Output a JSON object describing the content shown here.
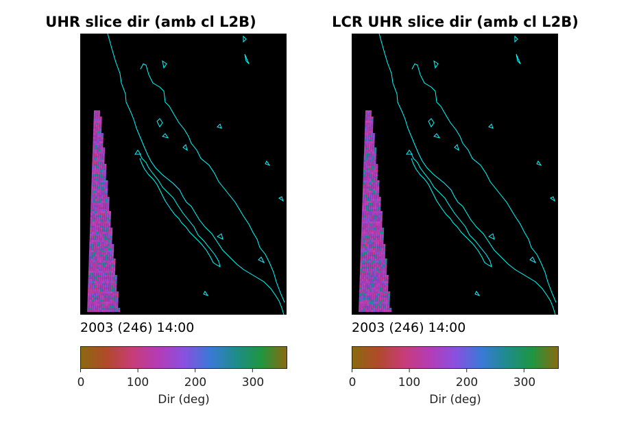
{
  "panels": [
    {
      "title": "UHR slice dir (amb cl L2B)",
      "timestamp": "2003 (246) 14:00",
      "colorbar": {
        "ticks": [
          "0",
          "100",
          "200",
          "300"
        ],
        "tick_values": [
          0,
          100,
          200,
          300
        ],
        "label": "Dir (deg)"
      }
    },
    {
      "title": "LCR UHR slice dir (amb cl L2B)",
      "timestamp": "2003 (246) 14:00",
      "colorbar": {
        "ticks": [
          "0",
          "100",
          "200",
          "300"
        ],
        "tick_values": [
          0,
          100,
          200,
          300
        ],
        "label": "Dir (deg)"
      }
    }
  ],
  "chart_data": [
    {
      "type": "heatmap",
      "title": "UHR slice dir (amb cl L2B)",
      "annotation": "2003 (246) 14:00",
      "colorbar_label": "Dir (deg)",
      "clim": [
        0,
        360
      ],
      "colorbar_ticks": [
        0,
        100,
        200,
        300
      ],
      "dominant_values": "magenta/purple (~80-180 deg) with teal speckle"
    },
    {
      "type": "heatmap",
      "title": "LCR UHR slice dir (amb cl L2B)",
      "annotation": "2003 (246) 14:00",
      "colorbar_label": "Dir (deg)",
      "clim": [
        0,
        360
      ],
      "colorbar_ticks": [
        0,
        100,
        200,
        300
      ],
      "dominant_values": "magenta/purple (~80-180 deg) with teal speckle"
    }
  ],
  "colors": {
    "background": "#000000",
    "coastline": "#00ffff",
    "colormap": [
      "#8a6a10",
      "#b04a2a",
      "#c83c78",
      "#b43cb4",
      "#8a50e0",
      "#3c78d8",
      "#1e8c8c",
      "#1e9640",
      "#8a6a10"
    ]
  }
}
